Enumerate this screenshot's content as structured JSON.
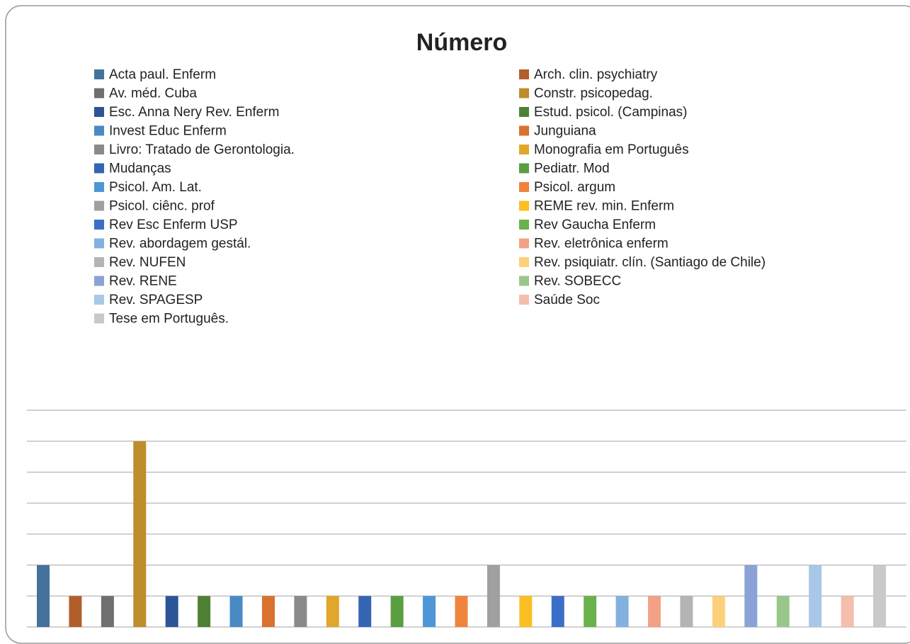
{
  "chart_data": {
    "type": "bar",
    "title": "Número",
    "ylim": [
      0,
      7
    ],
    "yticks": [
      0,
      1,
      2,
      3,
      4,
      5,
      6,
      7
    ],
    "grid": true,
    "legend": "top",
    "series": [
      {
        "name": "Acta paul. Enferm",
        "color": "#44729d",
        "values": [
          2
        ]
      },
      {
        "name": "Arch. clin. psychiatry",
        "color": "#b25e2a",
        "values": [
          1
        ]
      },
      {
        "name": "Av. méd. Cuba",
        "color": "#6f6f6f",
        "values": [
          1
        ]
      },
      {
        "name": "Constr. psicopedag.",
        "color": "#bd8e2b",
        "values": [
          6
        ]
      },
      {
        "name": "Esc. Anna Nery Rev. Enferm",
        "color": "#2c5597",
        "values": [
          1
        ]
      },
      {
        "name": "Estud. psicol. (Campinas)",
        "color": "#4f8135",
        "values": [
          1
        ]
      },
      {
        "name": "Invest Educ Enferm",
        "color": "#4a8ac4",
        "values": [
          1
        ]
      },
      {
        "name": "Junguiana",
        "color": "#d9722f",
        "values": [
          1
        ]
      },
      {
        "name": "Livro: Tratado de Gerontologia.",
        "color": "#8a8a8a",
        "values": [
          1
        ]
      },
      {
        "name": "Monografia em Português",
        "color": "#e2a72a",
        "values": [
          1
        ]
      },
      {
        "name": "Mudanças",
        "color": "#3465b3",
        "values": [
          1
        ]
      },
      {
        "name": "Pediatr. Mod",
        "color": "#5a9e42",
        "values": [
          1
        ]
      },
      {
        "name": "Psicol. Am. Lat.",
        "color": "#4d97d6",
        "values": [
          1
        ]
      },
      {
        "name": "Psicol. argum",
        "color": "#f0843c",
        "values": [
          1
        ]
      },
      {
        "name": "Psicol. ciênc. prof",
        "color": "#a0a0a0",
        "values": [
          2
        ]
      },
      {
        "name": "REME rev. min. Enferm",
        "color": "#fbbf23",
        "values": [
          1
        ]
      },
      {
        "name": "Rev Esc Enferm USP",
        "color": "#3b6ec6",
        "values": [
          1
        ]
      },
      {
        "name": "Rev Gaucha Enferm",
        "color": "#6ab14c",
        "values": [
          1
        ]
      },
      {
        "name": "Rev. abordagem gestál.",
        "color": "#82b1df",
        "values": [
          1
        ]
      },
      {
        "name": "Rev. eletrônica enferm",
        "color": "#f2a184",
        "values": [
          1
        ]
      },
      {
        "name": "Rev. NUFEN",
        "color": "#b4b4b4",
        "values": [
          1
        ]
      },
      {
        "name": "Rev. psiquiatr. clín. (Santiago de Chile)",
        "color": "#fdd07b",
        "values": [
          1
        ]
      },
      {
        "name": "Rev. RENE",
        "color": "#8aa2d6",
        "values": [
          2
        ]
      },
      {
        "name": "Rev. SOBECC",
        "color": "#99c68a",
        "values": [
          1
        ]
      },
      {
        "name": "Rev. SPAGESP",
        "color": "#a9c7e8",
        "values": [
          2
        ]
      },
      {
        "name": "Saúde Soc",
        "color": "#f5bdab",
        "values": [
          1
        ]
      },
      {
        "name": "Tese em Português.",
        "color": "#c9c9c9",
        "values": [
          2
        ]
      }
    ]
  }
}
